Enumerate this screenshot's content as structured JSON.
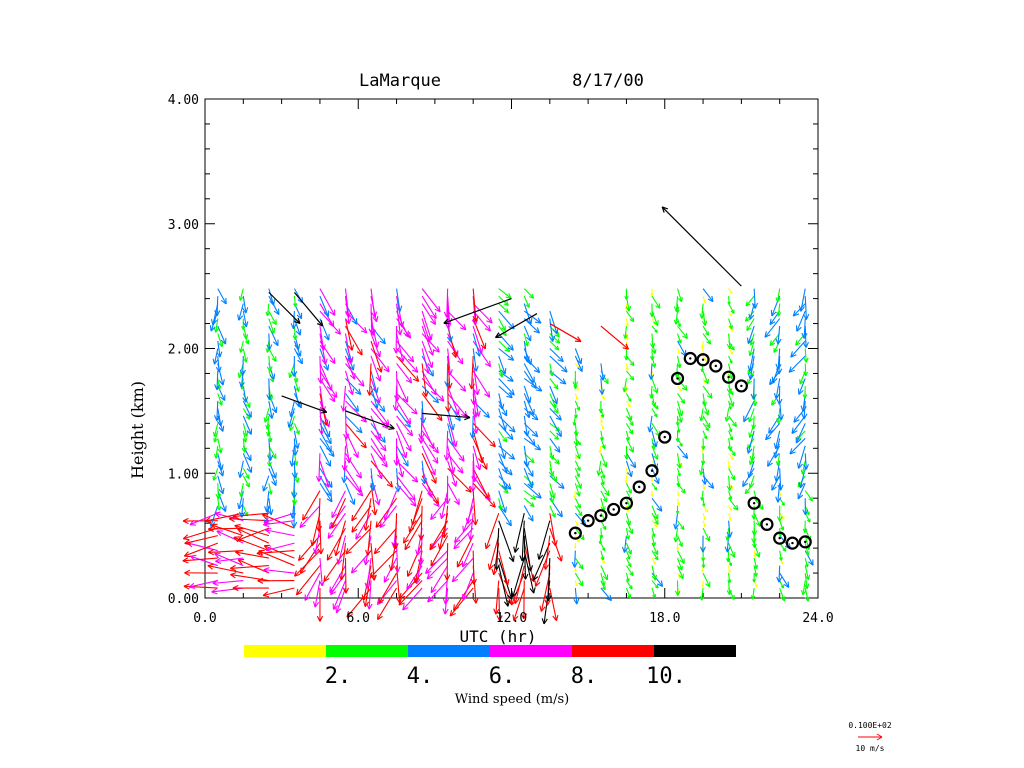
{
  "chart_data": {
    "type": "wind-profile",
    "title_station": "LaMarque",
    "title_date": "8/17/00",
    "xlabel": "UTC (hr)",
    "ylabel": "Height (km)",
    "xlim": [
      0,
      24
    ],
    "ylim": [
      0,
      4
    ],
    "x_ticks": [
      "0.0",
      "6.0",
      "12.0",
      "18.0",
      "24.0"
    ],
    "y_ticks": [
      "0.00",
      "1.00",
      "2.00",
      "3.00",
      "4.00"
    ],
    "colorbar": {
      "label": "Wind speed (m/s)",
      "tick_labels": [
        "2.",
        "4.",
        "6.",
        "8.",
        "10."
      ],
      "bins": [
        {
          "min": 0,
          "max": 2,
          "color": "#ffff00"
        },
        {
          "min": 2,
          "max": 4,
          "color": "#00ff00"
        },
        {
          "min": 4,
          "max": 6,
          "color": "#0080ff"
        },
        {
          "min": 6,
          "max": 8,
          "color": "#ff00ff"
        },
        {
          "min": 8,
          "max": 10,
          "color": "#ff0000"
        },
        {
          "min": 10,
          "max": 12,
          "color": "#000000"
        }
      ]
    },
    "reference_vector": {
      "label_top": "0.100E+02",
      "label_bottom": "10 m/s",
      "speed": 10,
      "color": "#ff0000"
    },
    "profile_times": [
      0.5,
      1.5,
      2.5,
      3.5,
      4.5,
      5.5,
      6.5,
      7.5,
      8.5,
      9.5,
      10.5,
      11.5,
      12.5,
      13.5,
      14.5,
      15.5,
      16.5,
      17.5,
      18.5,
      19.5,
      20.5,
      21.5,
      22.5,
      23.5
    ],
    "profile_tops_km": [
      2.48,
      2.48,
      2.5,
      2.5,
      2.5,
      2.52,
      2.52,
      2.52,
      2.52,
      2.52,
      2.52,
      2.48,
      2.48,
      2.3,
      2.0,
      1.9,
      2.5,
      2.5,
      2.5,
      2.5,
      2.5,
      2.5,
      2.5,
      2.5
    ],
    "profile_bottom_km": 0.08,
    "mixing_height": {
      "marker": "circle",
      "points": [
        [
          14.5,
          0.52
        ],
        [
          15.0,
          0.62
        ],
        [
          15.5,
          0.66
        ],
        [
          16.0,
          0.71
        ],
        [
          16.5,
          0.76
        ],
        [
          17.0,
          0.89
        ],
        [
          17.5,
          1.02
        ],
        [
          18.0,
          1.29
        ],
        [
          18.5,
          1.76
        ],
        [
          19.0,
          1.92
        ],
        [
          19.5,
          1.91
        ],
        [
          20.0,
          1.86
        ],
        [
          20.5,
          1.77
        ],
        [
          21.0,
          1.7
        ],
        [
          21.5,
          0.76
        ],
        [
          22.0,
          0.59
        ],
        [
          22.5,
          0.48
        ],
        [
          23.0,
          0.44
        ],
        [
          23.5,
          0.45
        ]
      ]
    },
    "wind_regimes": [
      {
        "t_range": [
          0,
          4.5
        ],
        "h_range": [
          0,
          0.7
        ],
        "speed": 8.5,
        "dir_deg": 270
      },
      {
        "t_range": [
          0,
          4.5
        ],
        "h_range": [
          0.7,
          2.5
        ],
        "speed": 4.2,
        "dir_deg": 175
      },
      {
        "t_range": [
          4.5,
          11.0
        ],
        "h_range": [
          0,
          0.9
        ],
        "speed": 8.0,
        "dir_deg": 200
      },
      {
        "t_range": [
          4.5,
          11.0
        ],
        "h_range": [
          0.9,
          2.5
        ],
        "speed": 7.0,
        "dir_deg": 160
      },
      {
        "t_range": [
          11.0,
          14.0
        ],
        "h_range": [
          0,
          0.7
        ],
        "speed": 9.5,
        "dir_deg": 180
      },
      {
        "t_range": [
          11.0,
          14.0
        ],
        "h_range": [
          0.7,
          2.5
        ],
        "speed": 4.5,
        "dir_deg": 150
      },
      {
        "t_range": [
          14.0,
          24.0
        ],
        "h_range": [
          0,
          2.5
        ],
        "speed": 2.8,
        "dir_deg": 165
      },
      {
        "t_range": [
          21.0,
          24.0
        ],
        "h_range": [
          0.9,
          2.5
        ],
        "speed": 4.5,
        "dir_deg": 200
      }
    ],
    "highlight_vectors": [
      {
        "t": 2.5,
        "h": 2.45,
        "speed": 11,
        "dir_deg": 135
      },
      {
        "t": 3.5,
        "h": 2.45,
        "speed": 11,
        "dir_deg": 140
      },
      {
        "t": 3.0,
        "h": 1.62,
        "speed": 12,
        "dir_deg": 110
      },
      {
        "t": 5.5,
        "h": 1.5,
        "speed": 13,
        "dir_deg": 110
      },
      {
        "t": 8.5,
        "h": 1.48,
        "speed": 12,
        "dir_deg": 95
      },
      {
        "t": 12.0,
        "h": 2.4,
        "speed": 18,
        "dir_deg": 250
      },
      {
        "t": 13.0,
        "h": 2.28,
        "speed": 12,
        "dir_deg": 240
      },
      {
        "t": 13.5,
        "h": 2.2,
        "speed": 9,
        "dir_deg": 120
      },
      {
        "t": 15.5,
        "h": 2.18,
        "speed": 9,
        "dir_deg": 130
      },
      {
        "t": 21.0,
        "h": 2.5,
        "speed": 28,
        "dir_deg": 315
      }
    ]
  }
}
